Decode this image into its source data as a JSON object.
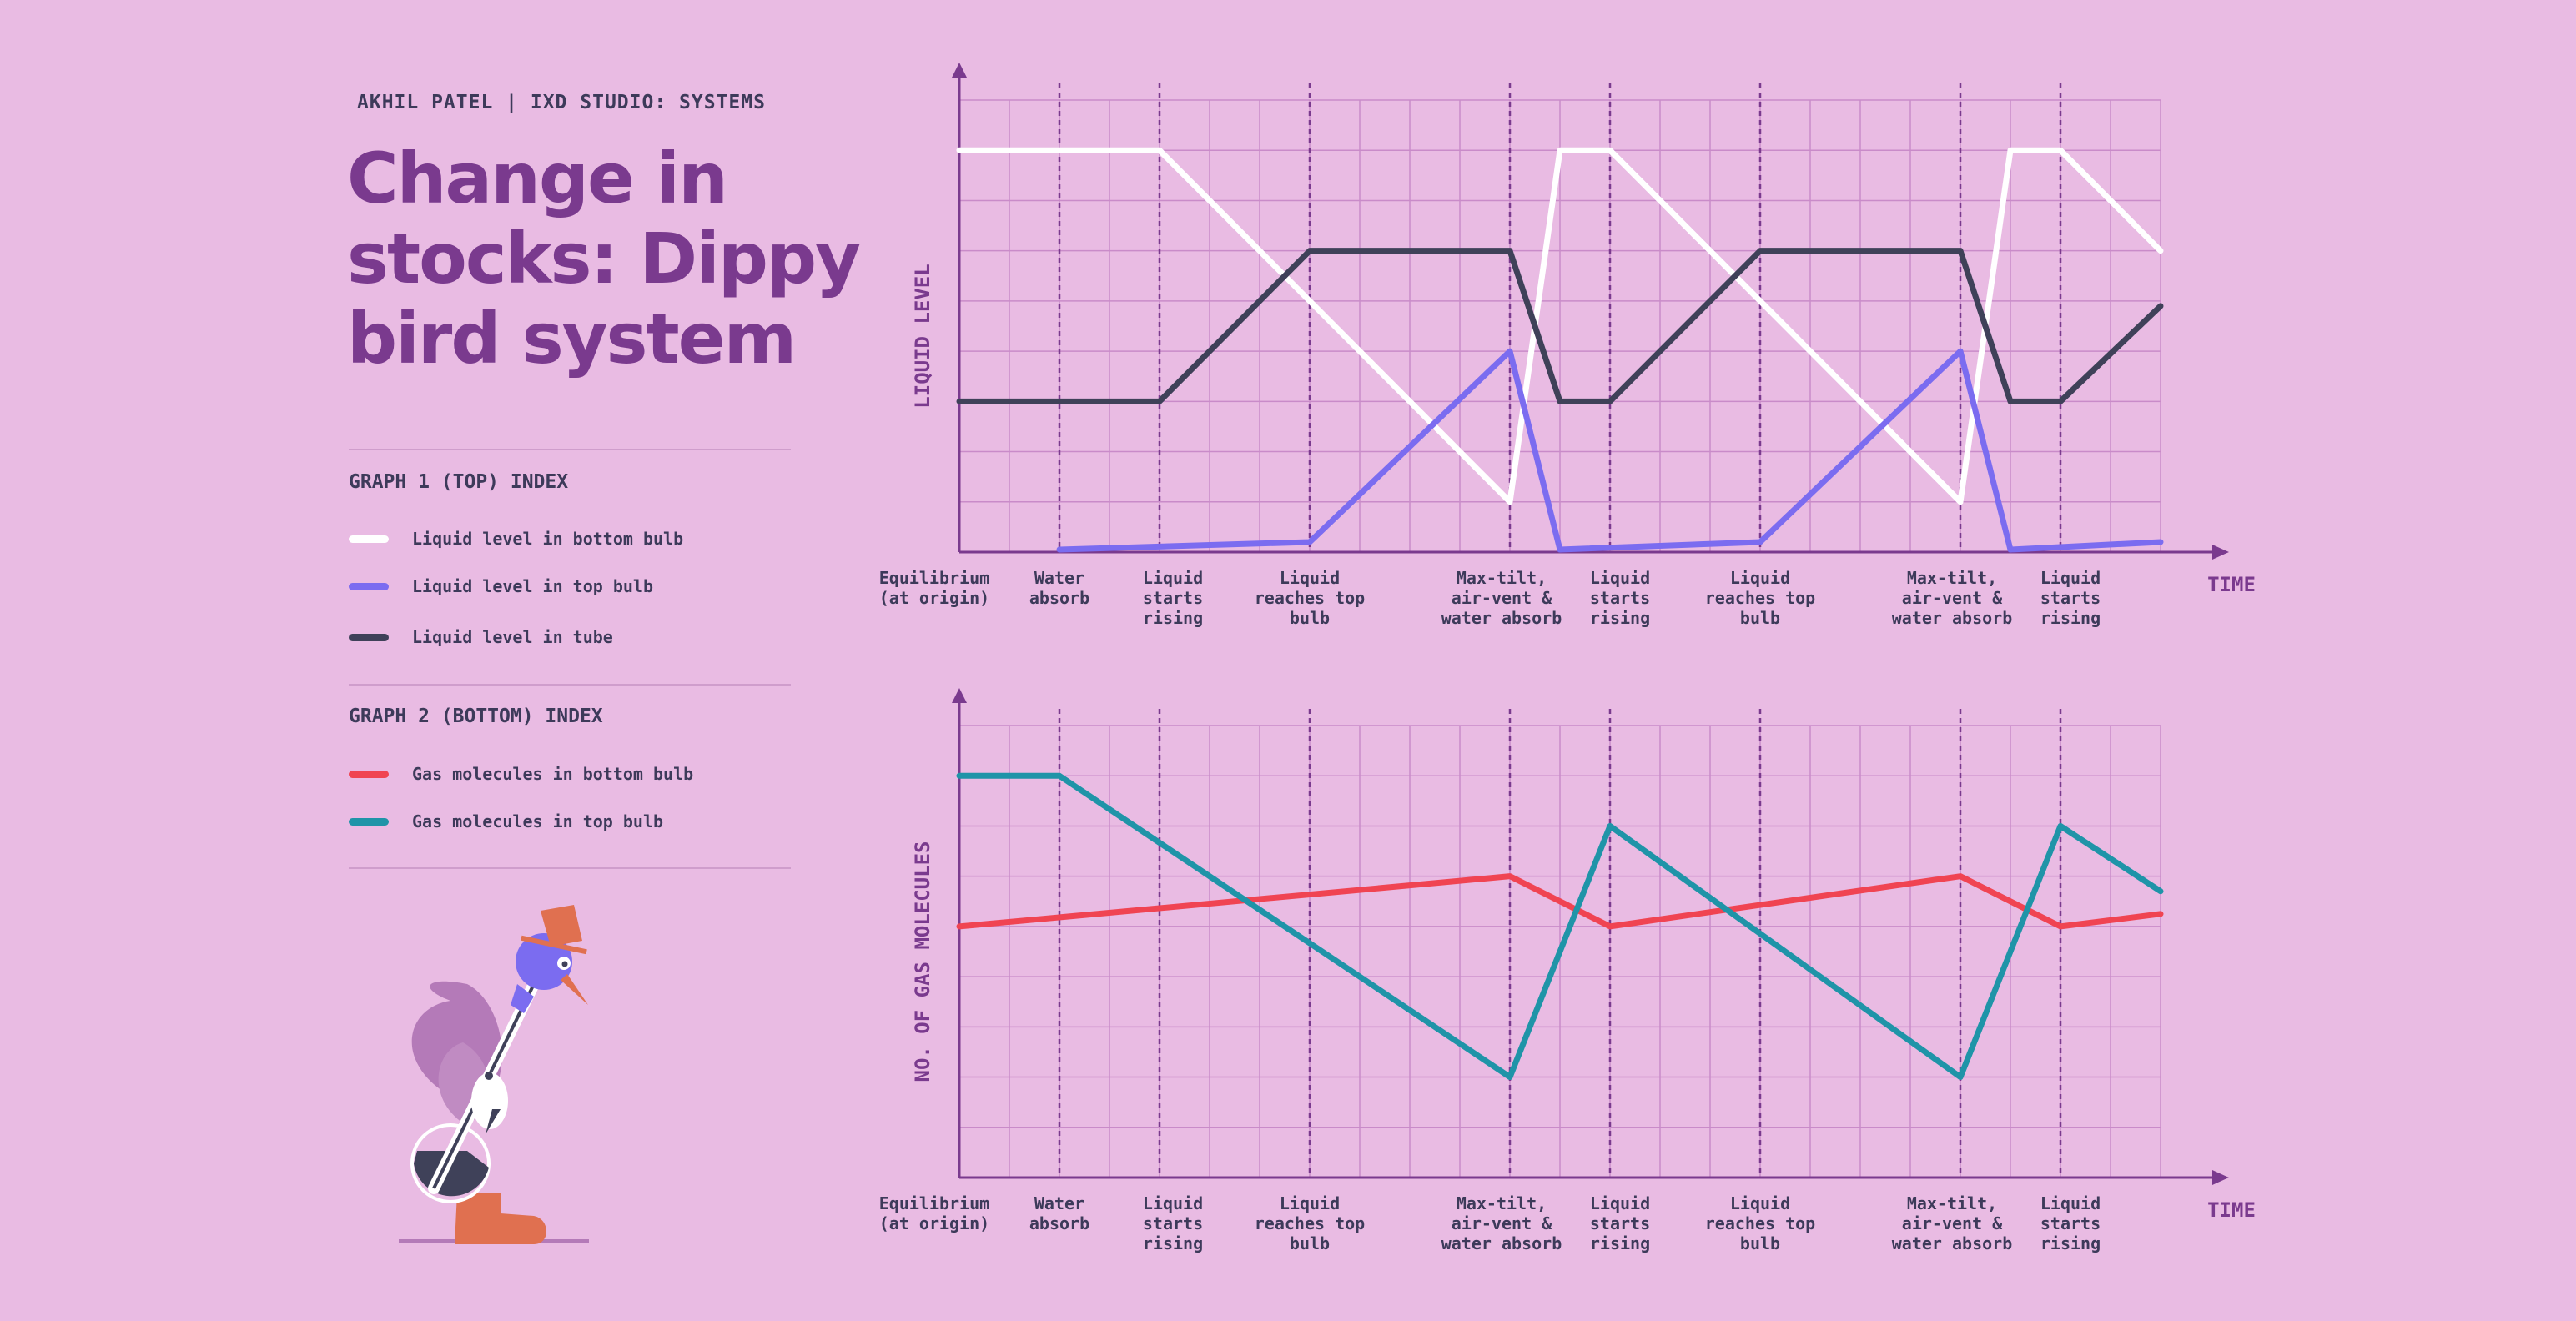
{
  "header": {
    "author": "AKHIL PATEL | IXD STUDIO: SYSTEMS",
    "title_lines": [
      "Change in",
      "stocks: Dippy",
      "bird system"
    ]
  },
  "index1": {
    "title": "GRAPH 1 (TOP) INDEX",
    "items": [
      {
        "label": "Liquid level in bottom bulb",
        "color": "#ffffff"
      },
      {
        "label": "Liquid level in top bulb",
        "color": "#7b6cf0"
      },
      {
        "label": "Liquid level in tube",
        "color": "#3f4159"
      }
    ]
  },
  "index2": {
    "title": "GRAPH 2 (BOTTOM) INDEX",
    "items": [
      {
        "label": "Gas molecules in bottom bulb",
        "color": "#f04452"
      },
      {
        "label": "Gas molecules in top bulb",
        "color": "#1f94a8"
      }
    ]
  },
  "chart_data": [
    {
      "type": "line",
      "ylabel": "LIQUID LEVEL",
      "xlabel": "TIME",
      "x": [
        0,
        1,
        2,
        3.5,
        5.5,
        6,
        6.5,
        8,
        10,
        10.5,
        11,
        12
      ],
      "xlim": [
        0,
        12
      ],
      "ylim": [
        0,
        9
      ],
      "grid": true,
      "event_markers": [
        {
          "x": 0,
          "label": [
            "Equilibrium",
            "(at origin)"
          ],
          "line": false
        },
        {
          "x": 1,
          "label": [
            "Water",
            "absorb"
          ],
          "line": true
        },
        {
          "x": 2,
          "label": [
            "Liquid",
            "starts",
            "rising"
          ],
          "line": true
        },
        {
          "x": 3.5,
          "label": [
            "Liquid",
            "reaches top",
            "bulb"
          ],
          "line": true
        },
        {
          "x": 5.5,
          "label": [
            "Max-tilt,",
            "air-vent &",
            "water absorb"
          ],
          "line": true
        },
        {
          "x": 6.5,
          "label": [
            "Liquid",
            "starts",
            "rising"
          ],
          "line": true
        },
        {
          "x": 8,
          "label": [
            "Liquid",
            "reaches top",
            "bulb"
          ],
          "line": true
        },
        {
          "x": 10,
          "label": [
            "Max-tilt,",
            "air-vent &",
            "water absorb"
          ],
          "line": true
        },
        {
          "x": 11,
          "label": [
            "Liquid",
            "starts",
            "rising"
          ],
          "line": true
        }
      ],
      "series": [
        {
          "color": "#ffffff",
          "points": [
            [
              0,
              8
            ],
            [
              2,
              8
            ],
            [
              5.5,
              1
            ],
            [
              6,
              8
            ],
            [
              6.5,
              8
            ],
            [
              10,
              1
            ],
            [
              10.5,
              8
            ],
            [
              11,
              8
            ],
            [
              12,
              6
            ]
          ]
        },
        {
          "color": "#7b6cf0",
          "points": [
            [
              1,
              0.05
            ],
            [
              3.5,
              0.2
            ],
            [
              5.5,
              4
            ],
            [
              6,
              0.05
            ],
            [
              8,
              0.2
            ],
            [
              10,
              4
            ],
            [
              10.5,
              0.05
            ],
            [
              12,
              0.2
            ]
          ]
        },
        {
          "color": "#3f4159",
          "points": [
            [
              0,
              3
            ],
            [
              2,
              3
            ],
            [
              3.5,
              6
            ],
            [
              5.5,
              6
            ],
            [
              6,
              3
            ],
            [
              6.5,
              3
            ],
            [
              8,
              6
            ],
            [
              10,
              6
            ],
            [
              10.5,
              3
            ],
            [
              11,
              3
            ],
            [
              12,
              4.9
            ]
          ]
        }
      ]
    },
    {
      "type": "line",
      "ylabel": "NO. OF GAS MOLECULES",
      "xlabel": "TIME",
      "x": [
        0,
        1,
        2,
        3.5,
        5.5,
        6,
        6.5,
        8,
        10,
        10.5,
        11,
        12
      ],
      "xlim": [
        0,
        12
      ],
      "ylim": [
        0,
        9
      ],
      "grid": true,
      "event_markers": [
        {
          "x": 0,
          "label": [
            "Equilibrium",
            "(at origin)"
          ],
          "line": false
        },
        {
          "x": 1,
          "label": [
            "Water",
            "absorb"
          ],
          "line": true
        },
        {
          "x": 2,
          "label": [
            "Liquid",
            "starts",
            "rising"
          ],
          "line": true
        },
        {
          "x": 3.5,
          "label": [
            "Liquid",
            "reaches top",
            "bulb"
          ],
          "line": true
        },
        {
          "x": 5.5,
          "label": [
            "Max-tilt,",
            "air-vent &",
            "water absorb"
          ],
          "line": true
        },
        {
          "x": 6.5,
          "label": [
            "Liquid",
            "starts",
            "rising"
          ],
          "line": true
        },
        {
          "x": 8,
          "label": [
            "Liquid",
            "reaches top",
            "bulb"
          ],
          "line": true
        },
        {
          "x": 10,
          "label": [
            "Max-tilt,",
            "air-vent &",
            "water absorb"
          ],
          "line": true
        },
        {
          "x": 11,
          "label": [
            "Liquid",
            "starts",
            "rising"
          ],
          "line": true
        }
      ],
      "series": [
        {
          "color": "#f04452",
          "points": [
            [
              0,
              5
            ],
            [
              5.5,
              6
            ],
            [
              6.5,
              5
            ],
            [
              10,
              6
            ],
            [
              11,
              5
            ],
            [
              12,
              5.25
            ]
          ]
        },
        {
          "color": "#1f94a8",
          "points": [
            [
              0,
              8
            ],
            [
              1,
              8
            ],
            [
              5.5,
              2
            ],
            [
              6.5,
              7
            ],
            [
              10,
              2
            ],
            [
              11,
              7
            ],
            [
              12,
              5.7
            ]
          ]
        }
      ]
    }
  ]
}
